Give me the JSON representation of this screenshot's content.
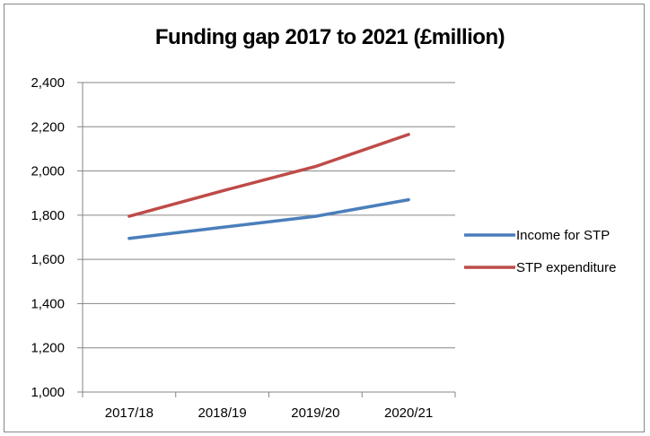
{
  "chart_data": {
    "type": "line",
    "title": "Funding gap 2017 to 2021 (£million)",
    "xlabel": "",
    "ylabel": "",
    "categories": [
      "2017/18",
      "2018/19",
      "2019/20",
      "2020/21"
    ],
    "ylim": [
      1000,
      2400
    ],
    "yticks": [
      1000,
      1200,
      1400,
      1600,
      1800,
      2000,
      2200,
      2400
    ],
    "ytick_labels": [
      "1,000",
      "1,200",
      "1,400",
      "1,600",
      "1,800",
      "2,000",
      "2,200",
      "2,400"
    ],
    "grid": "horizontal",
    "legend_position": "right",
    "series": [
      {
        "name": "Income for STP",
        "values": [
          1695,
          1745,
          1795,
          1870
        ],
        "color": "#4A7EBB"
      },
      {
        "name": "STP expenditure",
        "values": [
          1795,
          1910,
          2020,
          2165
        ],
        "color": "#BE4B48"
      }
    ]
  }
}
